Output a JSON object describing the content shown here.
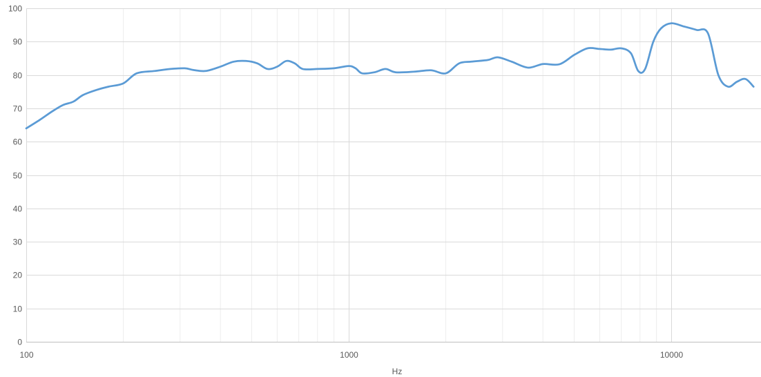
{
  "chart_data": {
    "type": "line",
    "title": "",
    "xlabel": "Hz",
    "ylabel": "",
    "x_scale": "log",
    "xlim": [
      100,
      18000
    ],
    "ylim": [
      0,
      100
    ],
    "grid": true,
    "legend": "none",
    "x_ticks": [
      100,
      1000,
      10000
    ],
    "x_tick_labels": [
      "100",
      "1000",
      "10000"
    ],
    "y_ticks": [
      0,
      10,
      20,
      30,
      40,
      50,
      60,
      70,
      80,
      90,
      100
    ],
    "y_tick_labels": [
      "0",
      "10",
      "20",
      "30",
      "40",
      "50",
      "60",
      "70",
      "80",
      "90",
      "100"
    ],
    "series": [
      {
        "color": "#5B9BD5",
        "x": [
          100,
          110,
          120,
          130,
          140,
          150,
          165,
          180,
          200,
          220,
          250,
          280,
          310,
          330,
          360,
          400,
          440,
          480,
          520,
          560,
          600,
          640,
          680,
          720,
          800,
          900,
          1000,
          1050,
          1100,
          1200,
          1300,
          1400,
          1600,
          1800,
          2000,
          2200,
          2400,
          2700,
          2900,
          3200,
          3600,
          4000,
          4500,
          5000,
          5500,
          6000,
          6500,
          7000,
          7500,
          7900,
          8300,
          8800,
          9300,
          10000,
          11000,
          12000,
          13000,
          14000,
          15000,
          16000,
          17000,
          18000
        ],
        "y": [
          64,
          66.5,
          69,
          71,
          72,
          74,
          75.5,
          76.5,
          77.5,
          80.5,
          81.2,
          81.8,
          82,
          81.5,
          81.2,
          82.5,
          84,
          84.2,
          83.5,
          81.8,
          82.5,
          84.2,
          83.5,
          81.8,
          81.8,
          82,
          82.7,
          82,
          80.5,
          80.8,
          81.8,
          80.8,
          81,
          81.4,
          80.5,
          83.5,
          84,
          84.5,
          85.3,
          84,
          82.2,
          83.3,
          83.2,
          86,
          88,
          87.8,
          87.6,
          88,
          86.5,
          81.2,
          81.8,
          90,
          94,
          95.5,
          94.5,
          93.5,
          92.5,
          80,
          76.5,
          78,
          78.8,
          76.5
        ]
      }
    ]
  }
}
